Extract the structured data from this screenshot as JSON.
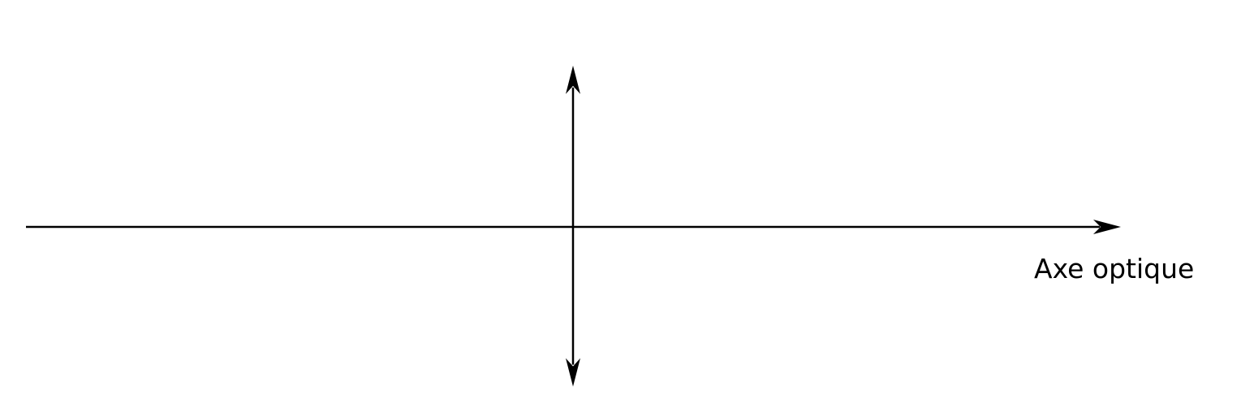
{
  "diagram": {
    "axis_label": "Axe optique",
    "line_color": "#000000",
    "background_color": "#ffffff",
    "lens_type": "converging"
  }
}
